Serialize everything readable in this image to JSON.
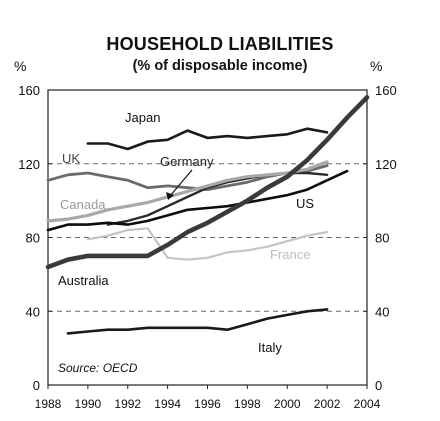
{
  "chart_data": {
    "type": "line",
    "title": "HOUSEHOLD LIABILITIES",
    "subtitle": "(% of disposable income)",
    "ylabel_left": "%",
    "ylabel_right": "%",
    "ylim": [
      0,
      160
    ],
    "xlim": [
      1988,
      2004
    ],
    "yticks": [
      "0",
      "40",
      "80",
      "120",
      "160"
    ],
    "xticks": [
      "1988",
      "1990",
      "1992",
      "1994",
      "1996",
      "1998",
      "2000",
      "2002",
      "2004"
    ],
    "grid": "dashed horizontal at 40, 80, 120",
    "source": "Source: OECD",
    "series": [
      {
        "name": "Japan",
        "color": "#1a1a1a",
        "x": [
          1990,
          1991,
          1992,
          1993,
          1994,
          1995,
          1996,
          1997,
          1998,
          1999,
          2000,
          2001,
          2002
        ],
        "values": [
          131,
          131,
          128,
          132,
          133,
          138,
          134,
          135,
          134,
          135,
          136,
          139,
          137
        ]
      },
      {
        "name": "UK",
        "color": "#6b6b6b",
        "x": [
          1988,
          1989,
          1990,
          1991,
          1992,
          1993,
          1994,
          1995,
          1996,
          1997,
          1998,
          1999,
          2000,
          2001,
          2002
        ],
        "values": [
          111,
          114,
          115,
          113,
          111,
          107,
          108,
          107,
          106,
          108,
          110,
          113,
          115,
          116,
          119
        ]
      },
      {
        "name": "Germany",
        "color": "#2a2a2a",
        "x": [
          1991,
          1992,
          1993,
          1994,
          1995,
          1996,
          1997,
          1998,
          1999,
          2000,
          2001,
          2002
        ],
        "values": [
          87,
          89,
          92,
          97,
          102,
          107,
          110,
          112,
          114,
          115,
          115,
          114
        ]
      },
      {
        "name": "Canada",
        "color": "#a8a8a8",
        "x": [
          1988,
          1989,
          1990,
          1991,
          1992,
          1993,
          1994,
          1995,
          1996,
          1997,
          1998,
          1999,
          2000,
          2001,
          2002
        ],
        "values": [
          89,
          90,
          92,
          95,
          97,
          99,
          102,
          105,
          108,
          111,
          113,
          114,
          115,
          117,
          121
        ]
      },
      {
        "name": "US",
        "color": "#0d0d0d",
        "x": [
          1988,
          1989,
          1990,
          1991,
          1992,
          1993,
          1994,
          1995,
          1996,
          1997,
          1998,
          1999,
          2000,
          2001,
          2002,
          2003
        ],
        "values": [
          84,
          87,
          87,
          88,
          87,
          89,
          92,
          95,
          96,
          97,
          99,
          101,
          103,
          106,
          111,
          116
        ]
      },
      {
        "name": "France",
        "color": "#c4c4c4",
        "x": [
          1990,
          1991,
          1992,
          1993,
          1994,
          1995,
          1996,
          1997,
          1998,
          1999,
          2000,
          2001,
          2002
        ],
        "values": [
          79,
          81,
          84,
          85,
          69,
          68,
          69,
          72,
          73,
          75,
          78,
          81,
          83
        ]
      },
      {
        "name": "Australia",
        "color": "#3a3a3a",
        "x": [
          1988,
          1989,
          1990,
          1991,
          1992,
          1993,
          1994,
          1995,
          1996,
          1997,
          1998,
          1999,
          2000,
          2001,
          2002,
          2003,
          2004
        ],
        "values": [
          64,
          68,
          70,
          70,
          70,
          70,
          76,
          83,
          88,
          94,
          100,
          107,
          113,
          122,
          133,
          145,
          156
        ]
      },
      {
        "name": "Italy",
        "color": "#1a1a1a",
        "x": [
          1989,
          1990,
          1991,
          1992,
          1993,
          1994,
          1995,
          1996,
          1997,
          1998,
          1999,
          2000,
          2001,
          2002
        ],
        "values": [
          28,
          29,
          30,
          30,
          31,
          31,
          31,
          31,
          30,
          33,
          36,
          38,
          40,
          41
        ]
      }
    ],
    "labels": {
      "Japan": "Japan",
      "UK": "UK",
      "Germany": "Germany",
      "Canada": "Canada",
      "US": "US",
      "France": "France",
      "Australia": "Australia",
      "Italy": "Italy"
    }
  }
}
